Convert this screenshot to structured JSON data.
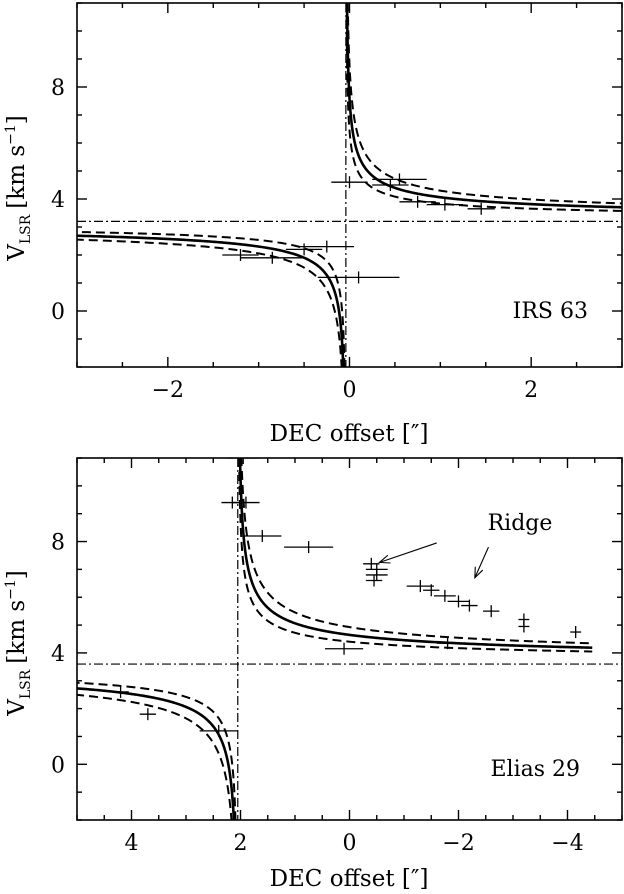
{
  "chart_data": [
    {
      "type": "line",
      "panel_label": "IRS 63",
      "xlabel": "DEC offset [″]",
      "ylabel": "V_LSR [km s^-1]",
      "ylabel_parts": {
        "main": "V",
        "sub": "LSR",
        "unit": "[km s",
        "sup": "−1",
        "close": "]"
      },
      "xlim": [
        -3,
        3
      ],
      "ylim": [
        -2,
        11
      ],
      "x_reversed": false,
      "xticks": [
        -2,
        0,
        2
      ],
      "xtick_labels": [
        "−2",
        "0",
        "2"
      ],
      "yticks": [
        0,
        4,
        8
      ],
      "ytick_labels": [
        "0",
        "4",
        "8"
      ],
      "systemic_velocity": 3.2,
      "source_offset": -0.04,
      "series": [
        {
          "role": "keplerian-fit",
          "style": "solid",
          "v0": 3.2,
          "x0": -0.04,
          "k": 0.88
        },
        {
          "role": "keplerian-fit",
          "style": "dashed",
          "v0": 3.2,
          "x0": -0.04,
          "k": 0.65
        },
        {
          "role": "keplerian-fit",
          "style": "dashed",
          "v0": 3.2,
          "x0": -0.04,
          "k": 1.12
        }
      ],
      "points": [
        {
          "x": -0.25,
          "y": 2.3,
          "xerr": 0.3
        },
        {
          "x": -0.5,
          "y": 2.2,
          "xerr": 0.2
        },
        {
          "x": -1.2,
          "y": 2.0,
          "xerr": 0.2
        },
        {
          "x": -0.85,
          "y": 1.9,
          "xerr": 0.35
        },
        {
          "x": 0.1,
          "y": 1.2,
          "xerr": 0.45
        },
        {
          "x": 0.0,
          "y": 4.6,
          "xerr": 0.2
        },
        {
          "x": 0.55,
          "y": 4.7,
          "xerr": 0.3
        },
        {
          "x": 0.45,
          "y": 4.5,
          "xerr": 0.2
        },
        {
          "x": 0.75,
          "y": 3.9,
          "xerr": 0.2
        },
        {
          "x": 1.05,
          "y": 3.8,
          "xerr": 0.2
        },
        {
          "x": 1.45,
          "y": 3.65,
          "xerr": 0.15
        }
      ]
    },
    {
      "type": "line",
      "panel_label": "Elias 29",
      "xlabel": "DEC offset [″]",
      "ylabel": "V_LSR [km s^-1]",
      "ylabel_parts": {
        "main": "V",
        "sub": "LSR",
        "unit": "[km s",
        "sup": "−1",
        "close": "]"
      },
      "xlim": [
        5,
        -5
      ],
      "ylim": [
        -2,
        11
      ],
      "x_reversed": true,
      "xticks": [
        4,
        2,
        0,
        -2,
        -4
      ],
      "xtick_labels": [
        "4",
        "2",
        "0",
        "−2",
        "−4"
      ],
      "yticks": [
        0,
        4,
        8
      ],
      "ytick_labels": [
        "0",
        "4",
        "8"
      ],
      "systemic_velocity": 3.6,
      "source_offset": 2.05,
      "series": [
        {
          "role": "keplerian-fit",
          "style": "solid",
          "v0": 3.6,
          "x0": 2.05,
          "k": 1.5
        },
        {
          "role": "keplerian-fit",
          "style": "dashed",
          "v0": 3.6,
          "x0": 2.05,
          "k": 1.15
        },
        {
          "role": "keplerian-fit",
          "style": "dashed",
          "v0": 3.6,
          "x0": 2.05,
          "k": 1.9
        }
      ],
      "points": [
        {
          "x": 1.95,
          "y": 11.0,
          "xerr": 0.3
        },
        {
          "x": 2.15,
          "y": 9.4,
          "xerr": 0.2
        },
        {
          "x": 1.9,
          "y": 9.4,
          "xerr": 0.25
        },
        {
          "x": 1.6,
          "y": 8.2,
          "xerr": 0.35
        },
        {
          "x": 0.75,
          "y": 7.8,
          "xerr": 0.45
        },
        {
          "x": 3.7,
          "y": 1.8,
          "xerr": 0.15
        },
        {
          "x": 2.4,
          "y": 1.2,
          "xerr": 0.35
        },
        {
          "x": 4.2,
          "y": 2.6,
          "xerr": 0.15
        },
        {
          "x": -0.4,
          "y": 7.2,
          "xerr": 0.15
        },
        {
          "x": -0.5,
          "y": 7.0,
          "xerr": 0.2
        },
        {
          "x": -0.5,
          "y": 6.8,
          "xerr": 0.2
        },
        {
          "x": -0.45,
          "y": 6.6,
          "xerr": 0.15
        },
        {
          "x": -1.3,
          "y": 6.4,
          "xerr": 0.25
        },
        {
          "x": -1.5,
          "y": 6.25,
          "xerr": 0.15
        },
        {
          "x": -1.75,
          "y": 6.05,
          "xerr": 0.2
        },
        {
          "x": -2.0,
          "y": 5.85,
          "xerr": 0.2
        },
        {
          "x": -2.2,
          "y": 5.7,
          "xerr": 0.15
        },
        {
          "x": -2.6,
          "y": 5.5,
          "xerr": 0.15
        },
        {
          "x": -3.2,
          "y": 5.2,
          "xerr": 0.1
        },
        {
          "x": -3.2,
          "y": 4.95,
          "xerr": 0.1
        },
        {
          "x": -4.15,
          "y": 4.75,
          "xerr": 0.1
        },
        {
          "x": -1.8,
          "y": 4.35,
          "xerr": 0.2
        },
        {
          "x": 0.1,
          "y": 4.15,
          "xerr": 0.35
        }
      ],
      "annotations": [
        {
          "text": "Ridge",
          "arrows": [
            {
              "from": [
                -1.6,
                7.95
              ],
              "to": [
                -0.55,
                7.25
              ]
            },
            {
              "from": [
                -2.55,
                7.8
              ],
              "to": [
                -2.3,
                6.7
              ]
            }
          ]
        }
      ]
    }
  ]
}
